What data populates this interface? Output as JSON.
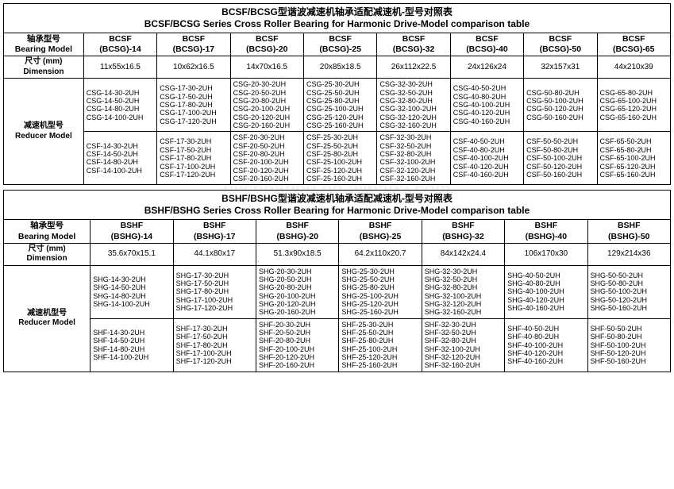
{
  "table1": {
    "title_cn": "BCSF/BCSG型谐波减速机轴承适配减速机-型号对照表",
    "title_en": "BCSF/BCSG Series Cross Roller Bearing for Harmonic Drive-Model comparison table",
    "col0_header_cn": "轴承型号",
    "col0_header_en": "Bearing Model",
    "dim_label_cn": "尺寸 (mm)",
    "dim_label_en": "Dimension",
    "reducer_label_cn": "减速机型号",
    "reducer_label_en": "Reducer Model",
    "cols": [
      {
        "h1": "BCSF",
        "h2": "(BCSG)-14",
        "dim": "11x55x16.5",
        "csg": [
          "CSG-14-30-2UH",
          "CSG-14-50-2UH",
          "CSG-14-80-2UH",
          "CSG-14-100-2UH"
        ],
        "csf": [
          "CSF-14-30-2UH",
          "CSF-14-50-2UH",
          "CSF-14-80-2UH",
          "CSF-14-100-2UH"
        ]
      },
      {
        "h1": "BCSF",
        "h2": "(BCSG)-17",
        "dim": "10x62x16.5",
        "csg": [
          "CSG-17-30-2UH",
          "CSG-17-50-2UH",
          "CSG-17-80-2UH",
          "CSG-17-100-2UH",
          "CSG-17-120-2UH"
        ],
        "csf": [
          "CSF-17-30-2UH",
          "CSF-17-50-2UH",
          "CSF-17-80-2UH",
          "CSF-17-100-2UH",
          "CSF-17-120-2UH"
        ]
      },
      {
        "h1": "BCSF",
        "h2": "(BCSG)-20",
        "dim": "14x70x16.5",
        "csg": [
          "CSG-20-30-2UH",
          "CSG-20-50-2UH",
          "CSG-20-80-2UH",
          "CSG-20-100-2UH",
          "CSG-20-120-2UH",
          "CSG-20-160-2UH"
        ],
        "csf": [
          "CSF-20-30-2UH",
          "CSF-20-50-2UH",
          "CSF-20-80-2UH",
          "CSF-20-100-2UH",
          "CSF-20-120-2UH",
          "CSF-20-160-2UH"
        ]
      },
      {
        "h1": "BCSF",
        "h2": "(BCSG)-25",
        "dim": "20x85x18.5",
        "csg": [
          "CSG-25-30-2UH",
          "CSG-25-50-2UH",
          "CSG-25-80-2UH",
          "CSG-25-100-2UH",
          "CSG-25-120-2UH",
          "CSG-25-160-2UH"
        ],
        "csf": [
          "CSF-25-30-2UH",
          "CSF-25-50-2UH",
          "CSF-25-80-2UH",
          "CSF-25-100-2UH",
          "CSF-25-120-2UH",
          "CSF-25-160-2UH"
        ]
      },
      {
        "h1": "BCSF",
        "h2": "(BCSG)-32",
        "dim": "26x112x22.5",
        "csg": [
          "CSG-32-30-2UH",
          "CSG-32-50-2UH",
          "CSG-32-80-2UH",
          "CSG-32-100-2UH",
          "CSG-32-120-2UH",
          "CSG-32-160-2UH"
        ],
        "csf": [
          "CSF-32-30-2UH",
          "CSF-32-50-2UH",
          "CSF-32-80-2UH",
          "CSF-32-100-2UH",
          "CSF-32-120-2UH",
          "CSF-32-160-2UH"
        ]
      },
      {
        "h1": "BCSF",
        "h2": "(BCSG)-40",
        "dim": "24x126x24",
        "csg": [
          "CSG-40-50-2UH",
          "CSG-40-80-2UH",
          "CSG-40-100-2UH",
          "CSG-40-120-2UH",
          "CSG-40-160-2UH"
        ],
        "csf": [
          "CSF-40-50-2UH",
          "CSF-40-80-2UH",
          "CSF-40-100-2UH",
          "CSF-40-120-2UH",
          "CSF-40-160-2UH"
        ]
      },
      {
        "h1": "BCSF",
        "h2": "(BCSG)-50",
        "dim": "32x157x31",
        "csg": [
          "CSG-50-80-2UH",
          "CSG-50-100-2UH",
          "CSG-50-120-2UH",
          "CSG-50-160-2UH"
        ],
        "csf": [
          "CSF-50-50-2UH",
          "CSF-50-80-2UH",
          "CSF-50-100-2UH",
          "CSF-50-120-2UH",
          "CSF-50-160-2UH"
        ]
      },
      {
        "h1": "BCSF",
        "h2": "(BCSG)-65",
        "dim": "44x210x39",
        "csg": [
          "CSG-65-80-2UH",
          "CSG-65-100-2UH",
          "CSG-65-120-2UH",
          "CSG-65-160-2UH"
        ],
        "csf": [
          "CSF-65-50-2UH",
          "CSF-65-80-2UH",
          "CSF-65-100-2UH",
          "CSF-65-120-2UH",
          "CSF-65-160-2UH"
        ]
      }
    ]
  },
  "table2": {
    "title_cn": "BSHF/BSHG型谐波减速机轴承适配减速机-型号对照表",
    "title_en": "BSHF/BSHG Series Cross Roller Bearing for Harmonic Drive-Model comparison table",
    "col0_header_cn": "轴承型号",
    "col0_header_en": "Bearing Model",
    "dim_label_cn": "尺寸 (mm)",
    "dim_label_en": "Dimension",
    "reducer_label_cn": "减速机型号",
    "reducer_label_en": "Reducer Model",
    "cols": [
      {
        "h1": "BSHF",
        "h2": "(BSHG)-14",
        "dim": "35.6x70x15.1",
        "shg": [
          "SHG-14-30-2UH",
          "SHG-14-50-2UH",
          "SHG-14-80-2UH",
          "SHG-14-100-2UH"
        ],
        "shf": [
          "SHF-14-30-2UH",
          "SHF-14-50-2UH",
          "SHF-14-80-2UH",
          "SHF-14-100-2UH"
        ]
      },
      {
        "h1": "BSHF",
        "h2": "(BSHG)-17",
        "dim": "44.1x80x17",
        "shg": [
          "SHG-17-30-2UH",
          "SHG-17-50-2UH",
          "SHG-17-80-2UH",
          "SHG-17-100-2UH",
          "SHG-17-120-2UH"
        ],
        "shf": [
          "SHF-17-30-2UH",
          "SHF-17-50-2UH",
          "SHF-17-80-2UH",
          "SHF-17-100-2UH",
          "SHF-17-120-2UH"
        ]
      },
      {
        "h1": "BSHF",
        "h2": "(BSHG)-20",
        "dim": "51.3x90x18.5",
        "shg": [
          "SHG-20-30-2UH",
          "SHG-20-50-2UH",
          "SHG-20-80-2UH",
          "SHG-20-100-2UH",
          "SHG-20-120-2UH",
          "SHG-20-160-2UH"
        ],
        "shf": [
          "SHF-20-30-2UH",
          "SHF-20-50-2UH",
          "SHF-20-80-2UH",
          "SHF-20-100-2UH",
          "SHF-20-120-2UH",
          "SHF-20-160-2UH"
        ]
      },
      {
        "h1": "BSHF",
        "h2": "(BSHG)-25",
        "dim": "64.2x110x20.7",
        "shg": [
          "SHG-25-30-2UH",
          "SHG-25-50-2UH",
          "SHG-25-80-2UH",
          "SHG-25-100-2UH",
          "SHG-25-120-2UH",
          "SHG-25-160-2UH"
        ],
        "shf": [
          "SHF-25-30-2UH",
          "SHF-25-50-2UH",
          "SHF-25-80-2UH",
          "SHF-25-100-2UH",
          "SHF-25-120-2UH",
          "SHF-25-160-2UH"
        ]
      },
      {
        "h1": "BSHF",
        "h2": "(BSHG)-32",
        "dim": "84x142x24.4",
        "shg": [
          "SHG-32-30-2UH",
          "SHG-32-50-2UH",
          "SHG-32-80-2UH",
          "SHG-32-100-2UH",
          "SHG-32-120-2UH",
          "SHG-32-160-2UH"
        ],
        "shf": [
          "SHF-32-30-2UH",
          "SHF-32-50-2UH",
          "SHF-32-80-2UH",
          "SHF-32-100-2UH",
          "SHF-32-120-2UH",
          "SHF-32-160-2UH"
        ]
      },
      {
        "h1": "BSHF",
        "h2": "(BSHG)-40",
        "dim": "106x170x30",
        "shg": [
          "SHG-40-50-2UH",
          "SHG-40-80-2UH",
          "SHG-40-100-2UH",
          "SHG-40-120-2UH",
          "SHG-40-160-2UH"
        ],
        "shf": [
          "SHF-40-50-2UH",
          "SHF-40-80-2UH",
          "SHF-40-100-2UH",
          "SHF-40-120-2UH",
          "SHF-40-160-2UH"
        ]
      },
      {
        "h1": "BSHF",
        "h2": "(BSHG)-50",
        "dim": "129x214x36",
        "shg": [
          "SHG-50-50-2UH",
          "SHG-50-80-2UH",
          "SHG-50-100-2UH",
          "SHG-50-120-2UH",
          "SHG-50-160-2UH"
        ],
        "shf": [
          "SHF-50-50-2UH",
          "SHF-50-80-2UH",
          "SHF-50-100-2UH",
          "SHF-50-120-2UH",
          "SHF-50-160-2UH"
        ]
      }
    ]
  },
  "styles": {
    "border_color": "#000000",
    "background_color": "#ffffff",
    "title_fontsize": 12,
    "header_fontsize": 10.5,
    "cell_fontsize": 10,
    "model_fontsize": 9,
    "font_family": "Arial"
  }
}
